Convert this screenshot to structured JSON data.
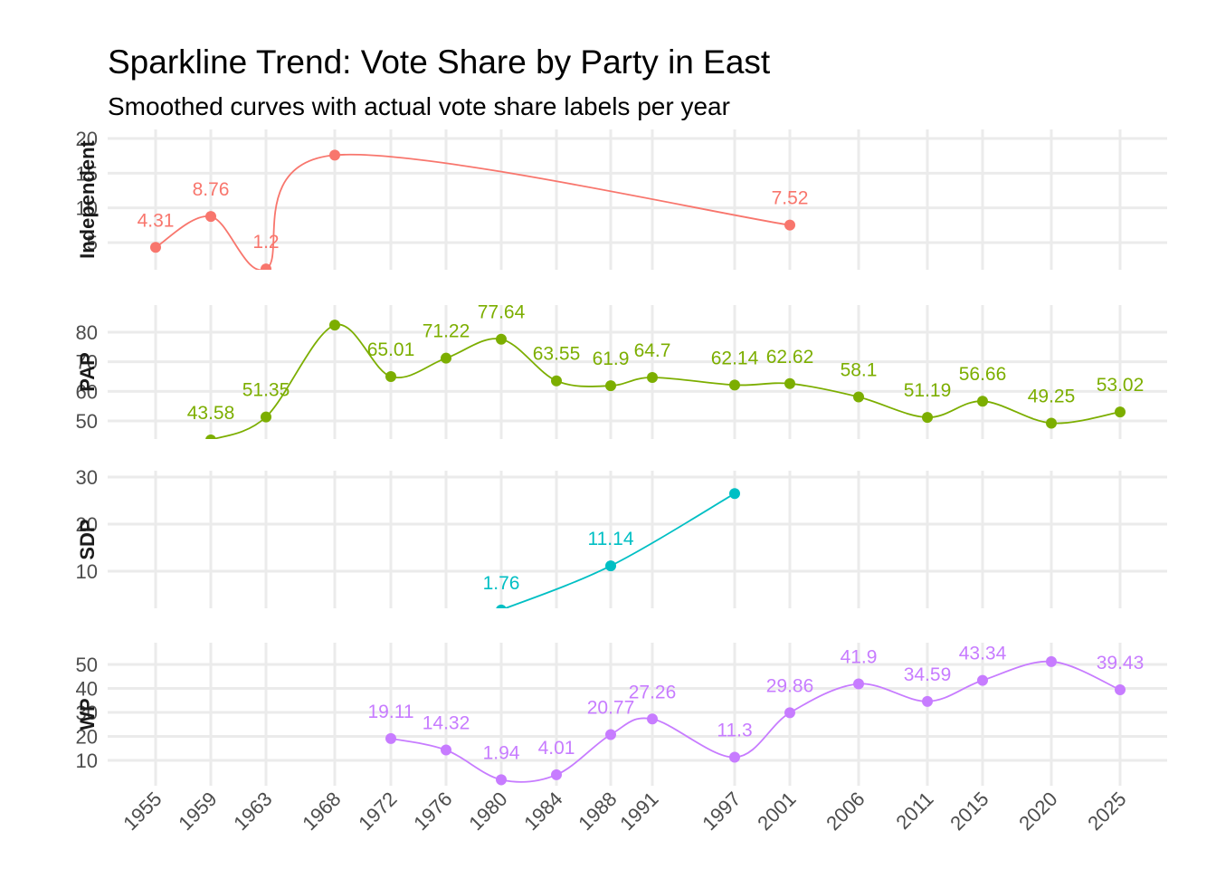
{
  "title": "Sparkline Trend: Vote Share by Party in East",
  "subtitle": "Smoothed curves with actual vote share labels per year",
  "chart_data": {
    "type": "line",
    "title": "Sparkline Trend: Vote Share by Party in East",
    "subtitle": "Smoothed curves with actual vote share labels per year",
    "x_ticks": [
      1955,
      1959,
      1963,
      1968,
      1972,
      1976,
      1980,
      1984,
      1988,
      1991,
      1997,
      2001,
      2006,
      2011,
      2015,
      2020,
      2025
    ],
    "grid": true,
    "facets": [
      {
        "name": "Independent",
        "color": "#F8766D",
        "y_ticks": [
          5,
          10,
          15,
          20
        ],
        "points": [
          {
            "x": 1955,
            "y": 4.31,
            "label": "4.31"
          },
          {
            "x": 1959,
            "y": 8.76,
            "label": "8.76"
          },
          {
            "x": 1963,
            "y": 1.2,
            "label": "1.2"
          },
          {
            "x": 1968,
            "y": 17.6,
            "label": ""
          },
          {
            "x": 2001,
            "y": 7.52,
            "label": "7.52"
          }
        ]
      },
      {
        "name": "PAP",
        "color": "#7CAE00",
        "y_ticks": [
          50,
          60,
          70,
          80
        ],
        "points": [
          {
            "x": 1959,
            "y": 43.58,
            "label": "43.58"
          },
          {
            "x": 1963,
            "y": 51.35,
            "label": "51.35"
          },
          {
            "x": 1968,
            "y": 82.4,
            "label": ""
          },
          {
            "x": 1972,
            "y": 65.01,
            "label": "65.01"
          },
          {
            "x": 1976,
            "y": 71.22,
            "label": "71.22"
          },
          {
            "x": 1980,
            "y": 77.64,
            "label": "77.64"
          },
          {
            "x": 1984,
            "y": 63.55,
            "label": "63.55"
          },
          {
            "x": 1988,
            "y": 61.9,
            "label": "61.9"
          },
          {
            "x": 1991,
            "y": 64.7,
            "label": "64.7"
          },
          {
            "x": 1997,
            "y": 62.14,
            "label": "62.14"
          },
          {
            "x": 2001,
            "y": 62.62,
            "label": "62.62"
          },
          {
            "x": 2006,
            "y": 58.1,
            "label": "58.1"
          },
          {
            "x": 2011,
            "y": 51.19,
            "label": "51.19"
          },
          {
            "x": 2015,
            "y": 56.66,
            "label": "56.66"
          },
          {
            "x": 2020,
            "y": 49.25,
            "label": "49.25"
          },
          {
            "x": 2025,
            "y": 53.02,
            "label": "53.02"
          }
        ]
      },
      {
        "name": "SDP",
        "color": "#00BFC4",
        "y_ticks": [
          10,
          20,
          30
        ],
        "points": [
          {
            "x": 1980,
            "y": 1.76,
            "label": "1.76"
          },
          {
            "x": 1988,
            "y": 11.14,
            "label": "11.14"
          },
          {
            "x": 1997,
            "y": 26.5,
            "label": ""
          }
        ]
      },
      {
        "name": "WP",
        "color": "#C77CFF",
        "y_ticks": [
          10,
          20,
          30,
          40,
          50
        ],
        "points": [
          {
            "x": 1972,
            "y": 19.11,
            "label": "19.11"
          },
          {
            "x": 1976,
            "y": 14.32,
            "label": "14.32"
          },
          {
            "x": 1980,
            "y": 1.94,
            "label": "1.94"
          },
          {
            "x": 1984,
            "y": 4.01,
            "label": "4.01"
          },
          {
            "x": 1988,
            "y": 20.77,
            "label": "20.77"
          },
          {
            "x": 1991,
            "y": 27.26,
            "label": "27.26"
          },
          {
            "x": 1997,
            "y": 11.3,
            "label": "11.3"
          },
          {
            "x": 2001,
            "y": 29.86,
            "label": "29.86"
          },
          {
            "x": 2006,
            "y": 41.9,
            "label": "41.9"
          },
          {
            "x": 2011,
            "y": 34.59,
            "label": "34.59"
          },
          {
            "x": 2015,
            "y": 43.34,
            "label": "43.34"
          },
          {
            "x": 2020,
            "y": 51.2,
            "label": ""
          },
          {
            "x": 2025,
            "y": 39.43,
            "label": "39.43"
          }
        ]
      }
    ]
  }
}
